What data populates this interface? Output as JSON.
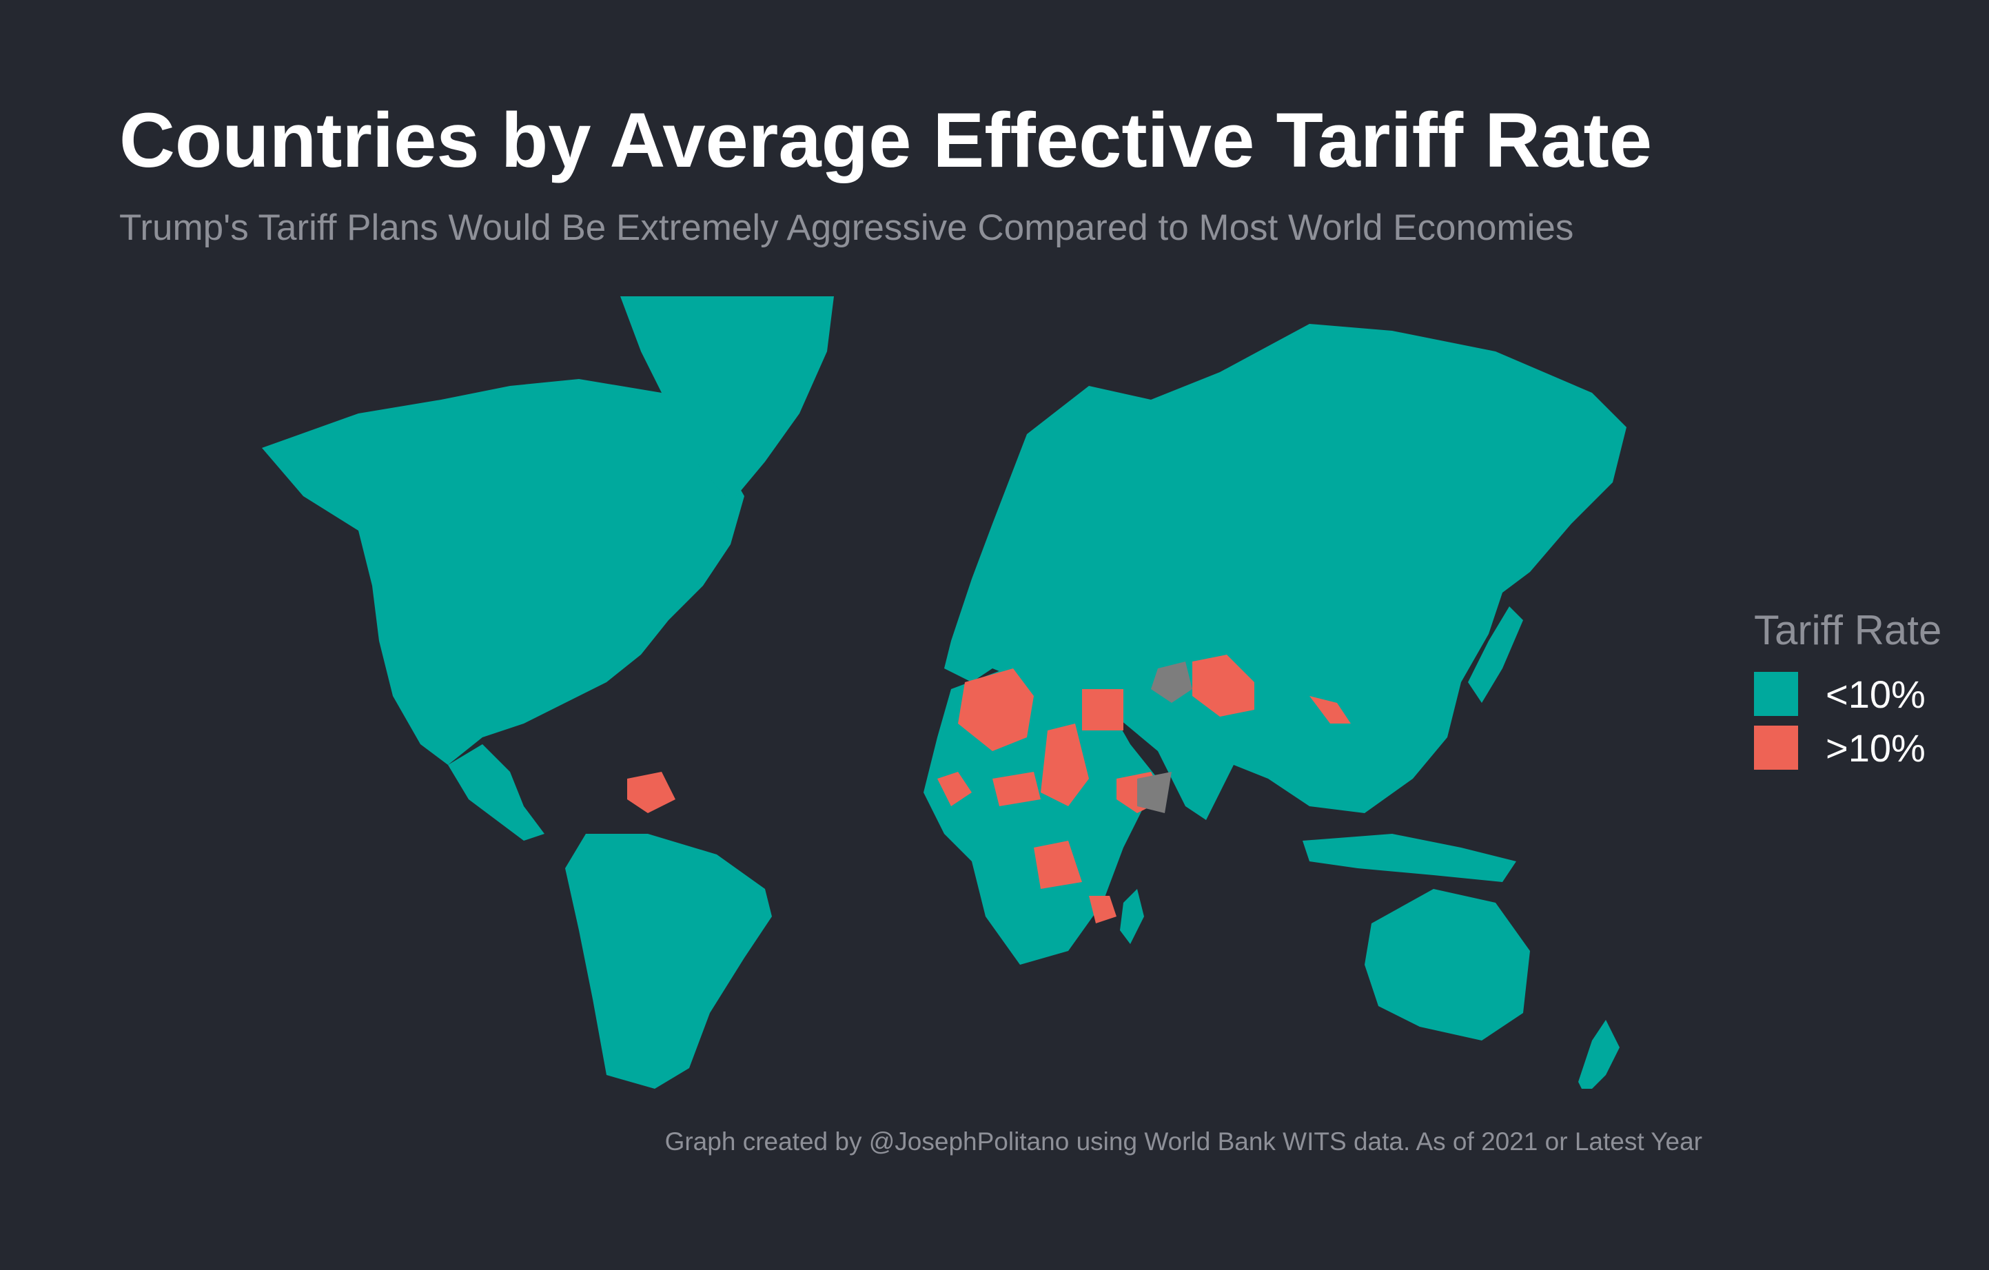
{
  "title": "Countries by Average Effective Tariff Rate",
  "subtitle": "Trump's Tariff Plans Would Be Extremely Aggressive Compared to Most World Economies",
  "legend": {
    "title": "Tariff Rate",
    "items": [
      {
        "label": "<10%",
        "color": "#00a99d"
      },
      {
        "label": ">10%",
        "color": "#ee6355"
      }
    ]
  },
  "colors": {
    "background": "#252830",
    "low_tariff": "#00a99d",
    "high_tariff": "#ee6355",
    "no_data": "#7d7d7d"
  },
  "caption": "Graph created by @JosephPolitano using World Bank WITS data. As of 2021 or Latest Year"
}
